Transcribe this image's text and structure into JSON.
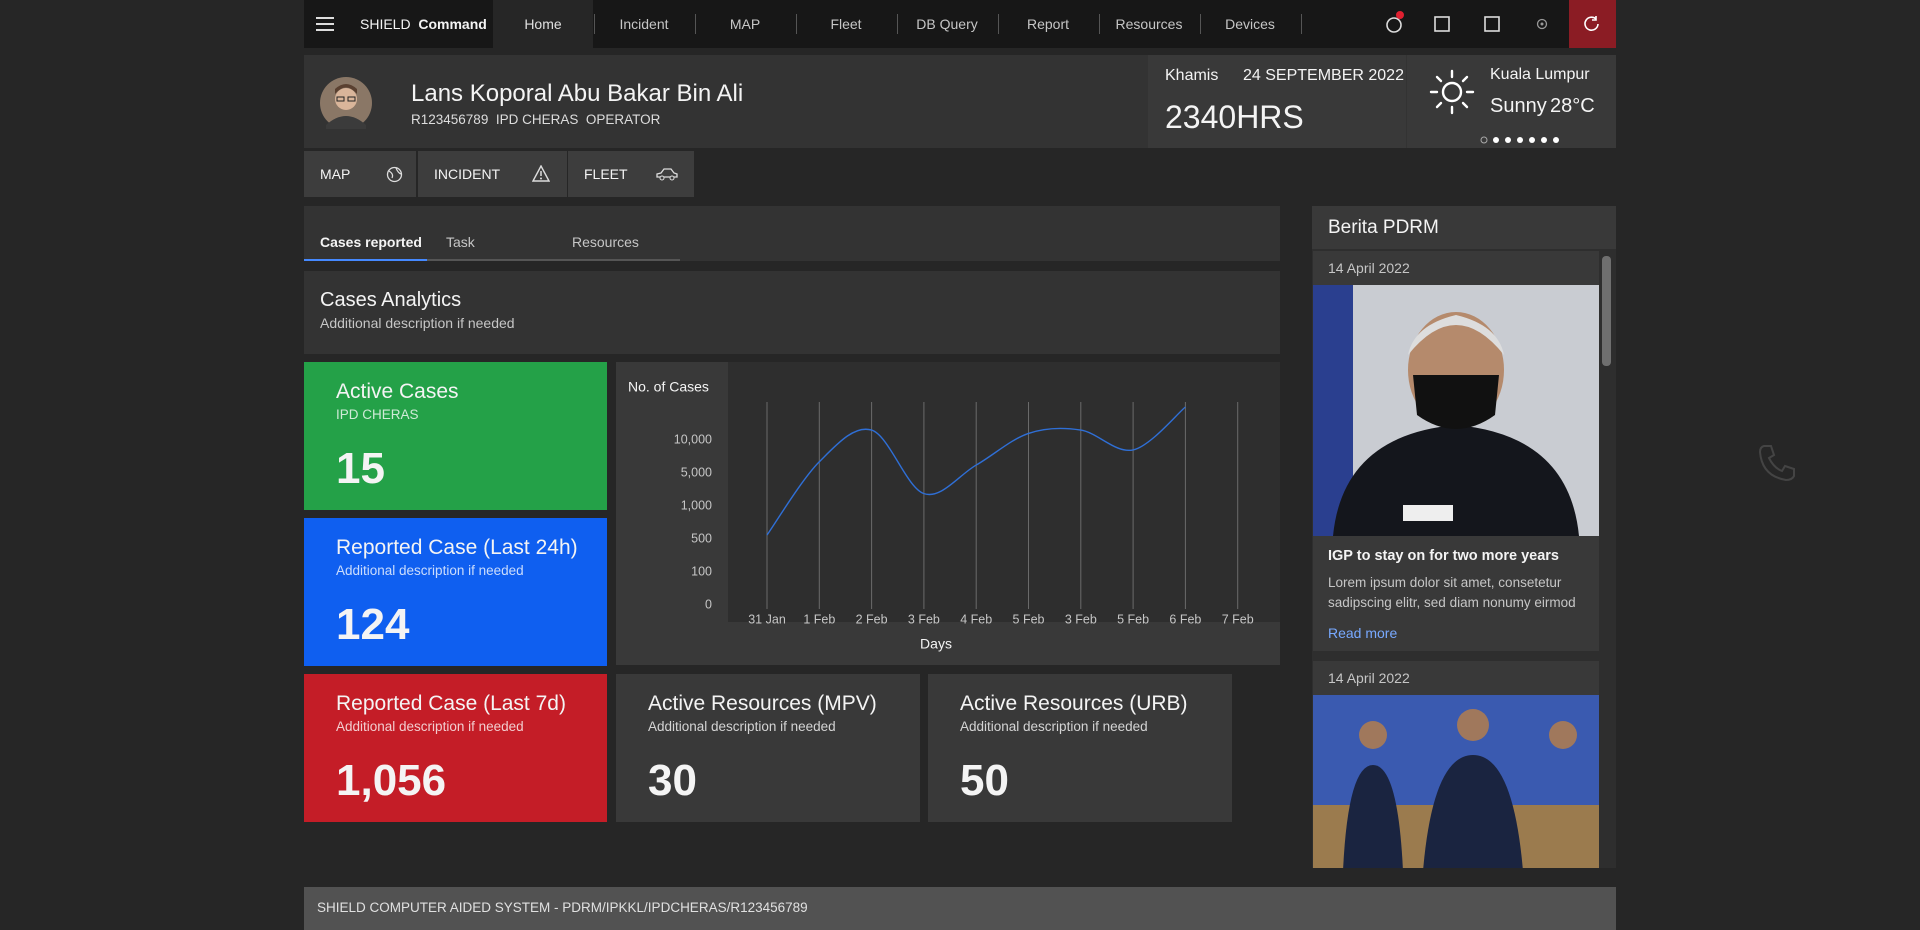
{
  "nav": {
    "brand": "SHIELD",
    "brand_bold": "Command",
    "items": [
      "Home",
      "Incident",
      "MAP",
      "Fleet",
      "DB Query",
      "Report",
      "Resources",
      "Devices"
    ]
  },
  "user": {
    "name": "Lans Koporal Abu Bakar Bin Ali",
    "id": "R123456789",
    "unit": "IPD CHERAS",
    "role": "OPERATOR"
  },
  "datetime": {
    "day": "Khamis",
    "date": "24 SEPTEMBER 2022",
    "time": "2340HRS"
  },
  "weather": {
    "city": "Kuala Lumpur",
    "condition": "Sunny",
    "temperature": "28°C"
  },
  "quick_actions": [
    "MAP",
    "INCIDENT",
    "FLEET"
  ],
  "tabs": [
    "Cases reported",
    "Task",
    "Resources"
  ],
  "section": {
    "title": "Cases Analytics",
    "description": "Additional description if needed"
  },
  "cards": [
    {
      "title": "Active Cases",
      "subtitle": "IPD CHERAS",
      "value": "15"
    },
    {
      "title": "Reported Case (Last 24h)",
      "subtitle": "Additional description if needed",
      "value": "124"
    },
    {
      "title": "Reported Case (Last 7d)",
      "subtitle": "Additional description if needed",
      "value": "1,056"
    },
    {
      "title": "Active Resources (MPV)",
      "subtitle": "Additional description if needed",
      "value": "30"
    },
    {
      "title": "Active Resources (URB)",
      "subtitle": "Additional description if needed",
      "value": "50"
    }
  ],
  "chart_data": {
    "type": "line",
    "ylabel": "No. of Cases",
    "xlabel": "Days",
    "categories": [
      "31 Jan",
      "1 Feb",
      "2 Feb",
      "3 Feb",
      "4 Feb",
      "5 Feb",
      "3 Feb",
      "5 Feb",
      "6 Feb",
      "7 Feb"
    ],
    "series": [
      {
        "name": "Cases",
        "color": "#2f6fd6",
        "values": [
          560,
          6700,
          11500,
          2500,
          6200,
          11000,
          11500,
          8500,
          15000,
          null
        ]
      }
    ],
    "ylim": [
      0,
      15000
    ],
    "yticks": [
      0,
      100,
      500,
      {
        "value": 1000,
        "label": "1,000"
      },
      {
        "value": 5000,
        "label": "5,000"
      },
      {
        "value": 10000,
        "label": "10,000"
      }
    ],
    "grid": true
  },
  "news": {
    "title": "Berita PDRM",
    "items": [
      {
        "date": "14 April 2022",
        "headline": "IGP to stay on for two more years",
        "body": "Lorem ipsum dolor sit amet, consetetur sadipscing elitr, sed diam nonumy eirmod",
        "link": "Read more"
      },
      {
        "date": "14 April 2022"
      }
    ]
  },
  "footer": "SHIELD COMPUTER AIDED SYSTEM - PDRM/IPKKL/IPDCHERAS/R123456789"
}
